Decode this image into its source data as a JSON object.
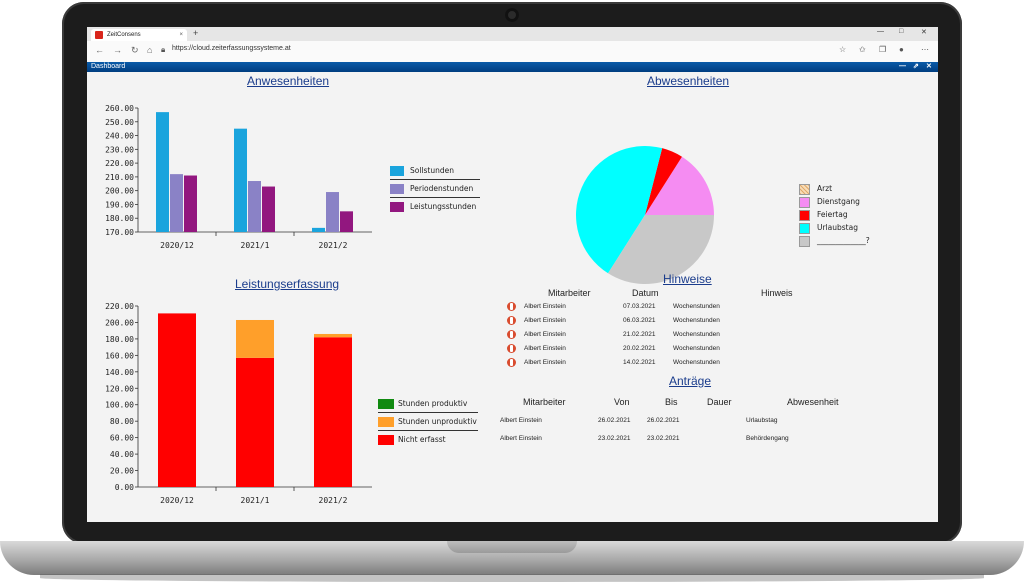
{
  "browser": {
    "tab_title": "ZeitConsens",
    "tab_close": "×",
    "new_tab": "+",
    "url": "https://cloud.zeiterfassungssysteme.at",
    "window_controls": [
      "—",
      "□",
      "✕"
    ],
    "nav_icons": [
      "←",
      "→",
      "↻",
      "⌂"
    ]
  },
  "dashboard": {
    "title": "Dashboard",
    "controls": [
      "—",
      "⇗",
      "✕"
    ]
  },
  "anwesenheiten": {
    "title": "Anwesenheiten",
    "chart_data": {
      "type": "bar",
      "categories": [
        "2020/12",
        "2021/1",
        "2021/2"
      ],
      "ylim": [
        170,
        260
      ],
      "yticks": [
        "260.00",
        "250.00",
        "240.00",
        "230.00",
        "220.00",
        "210.00",
        "200.00",
        "190.00",
        "180.00",
        "170.00"
      ],
      "series": [
        {
          "name": "Sollstunden",
          "color": "#1aa4dd",
          "values": [
            257,
            245,
            173
          ]
        },
        {
          "name": "Periodenstunden",
          "color": "#8a82c6",
          "values": [
            212,
            207,
            199
          ]
        },
        {
          "name": "Leistungsstunden",
          "color": "#92177f",
          "values": [
            211,
            203,
            185
          ]
        }
      ]
    }
  },
  "abwesenheiten": {
    "title": "Abwesenheiten",
    "chart_data": {
      "type": "pie",
      "slices": [
        {
          "name": "Arzt",
          "color": "#f3c48a",
          "value": 0
        },
        {
          "name": "Dienstgang",
          "color": "#f58cf2",
          "value": 16
        },
        {
          "name": "Feiertag",
          "color": "#ff0000",
          "value": 5
        },
        {
          "name": "Urlaubstag",
          "color": "#00ffff",
          "value": 45
        },
        {
          "name": "_____________?",
          "color": "#c8c8c8",
          "value": 34
        }
      ]
    }
  },
  "leistungserfassung": {
    "title": "Leistungserfassung",
    "chart_data": {
      "type": "bar",
      "stacked": true,
      "categories": [
        "2020/12",
        "2021/1",
        "2021/2"
      ],
      "ylim": [
        0,
        220
      ],
      "yticks": [
        "220.00",
        "200.00",
        "180.00",
        "160.00",
        "140.00",
        "120.00",
        "100.00",
        "80.00",
        "60.00",
        "40.00",
        "20.00",
        "0.00"
      ],
      "series": [
        {
          "name": "Nicht erfasst",
          "color": "#ff0000",
          "values": [
            211,
            157,
            182
          ]
        },
        {
          "name": "Stunden unproduktiv",
          "color": "#ff9f2a",
          "values": [
            0,
            46,
            4
          ]
        },
        {
          "name": "Stunden produktiv",
          "color": "#108a10",
          "values": [
            0,
            0,
            0
          ]
        }
      ],
      "legend_order": [
        "Stunden produktiv",
        "Stunden unproduktiv",
        "Nicht erfasst"
      ]
    }
  },
  "hinweise": {
    "title": "Hinweise",
    "headers": [
      "Mitarbeiter",
      "Datum",
      "Hinweis"
    ],
    "rows": [
      {
        "mitarbeiter": "Albert Einstein",
        "datum": "07.03.2021",
        "hinweis": "Wochenstunden"
      },
      {
        "mitarbeiter": "Albert Einstein",
        "datum": "06.03.2021",
        "hinweis": "Wochenstunden"
      },
      {
        "mitarbeiter": "Albert Einstein",
        "datum": "21.02.2021",
        "hinweis": "Wochenstunden"
      },
      {
        "mitarbeiter": "Albert Einstein",
        "datum": "20.02.2021",
        "hinweis": "Wochenstunden"
      },
      {
        "mitarbeiter": "Albert Einstein",
        "datum": "14.02.2021",
        "hinweis": "Wochenstunden"
      }
    ]
  },
  "antraege": {
    "title": "Anträge",
    "headers": [
      "Mitarbeiter",
      "Von",
      "Bis",
      "Dauer",
      "Abwesenheit"
    ],
    "rows": [
      {
        "mitarbeiter": "Albert Einstein",
        "von": "26.02.2021",
        "bis": "26.02.2021",
        "dauer": "",
        "abwesenheit": "Urlaubstag"
      },
      {
        "mitarbeiter": "Albert Einstein",
        "von": "23.02.2021",
        "bis": "23.02.2021",
        "dauer": "",
        "abwesenheit": "Behördengang"
      }
    ]
  }
}
